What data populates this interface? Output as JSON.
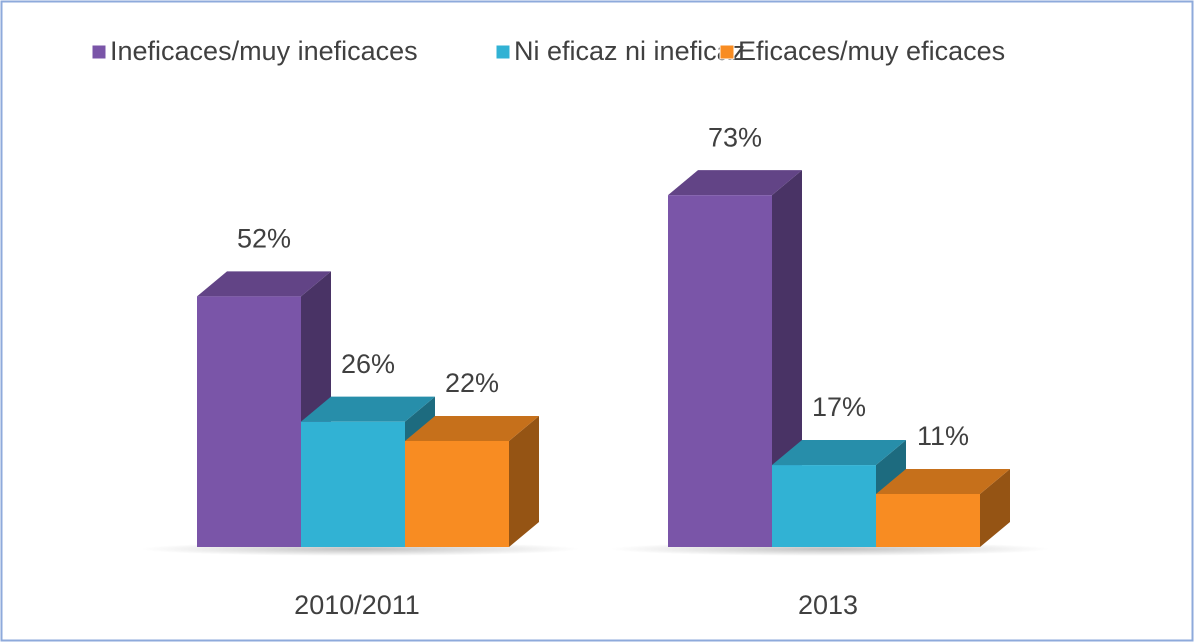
{
  "chart_data": {
    "type": "bar3d",
    "categories": [
      "2010/2011",
      "2013"
    ],
    "series": [
      {
        "name": "Ineficaces/muy ineficaces",
        "color": "#7a55a8",
        "values": [
          52,
          73
        ],
        "value_labels": [
          "52%",
          "73%"
        ]
      },
      {
        "name": "Ni eficaz ni ineficaz",
        "color": "#31b2d4",
        "values": [
          26,
          17
        ],
        "value_labels": [
          "26%",
          "17%"
        ]
      },
      {
        "name": "Eficaces/muy eficaces",
        "color": "#f88c22",
        "values": [
          22,
          11
        ],
        "value_labels": [
          "22%",
          "11%"
        ]
      }
    ],
    "legend": "top"
  }
}
